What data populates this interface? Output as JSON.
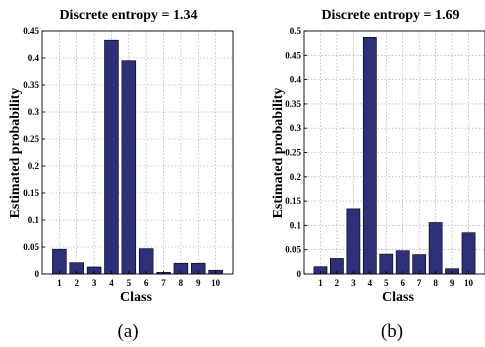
{
  "chart_data": [
    {
      "type": "bar",
      "title": "Discrete entropy = 1.34",
      "xlabel": "Class",
      "ylabel": "Estimated probability",
      "categories": [
        "1",
        "2",
        "3",
        "4",
        "5",
        "6",
        "7",
        "8",
        "9",
        "10"
      ],
      "values": [
        0.046,
        0.021,
        0.013,
        0.433,
        0.395,
        0.047,
        0.003,
        0.02,
        0.02,
        0.007
      ],
      "ylim": [
        0,
        0.45
      ],
      "yticks": [
        "0",
        "0.05",
        "0.1",
        "0.15",
        "0.2",
        "0.25",
        "0.3",
        "0.35",
        "0.4",
        "0.45"
      ],
      "grid": true,
      "bar_color": "#2e2f79",
      "caption": "(a)"
    },
    {
      "type": "bar",
      "title": "Discrete entropy = 1.69",
      "xlabel": "Class",
      "ylabel": "Estimated probability",
      "categories": [
        "1",
        "2",
        "3",
        "4",
        "5",
        "6",
        "7",
        "8",
        "9",
        "10"
      ],
      "values": [
        0.015,
        0.032,
        0.134,
        0.487,
        0.041,
        0.048,
        0.04,
        0.106,
        0.011,
        0.085
      ],
      "ylim": [
        0,
        0.5
      ],
      "yticks": [
        "0",
        "0.05",
        "0.1",
        "0.15",
        "0.2",
        "0.25",
        "0.3",
        "0.35",
        "0.4",
        "0.45",
        "0.5"
      ],
      "grid": true,
      "bar_color": "#2e2f79",
      "caption": "(b)"
    }
  ]
}
